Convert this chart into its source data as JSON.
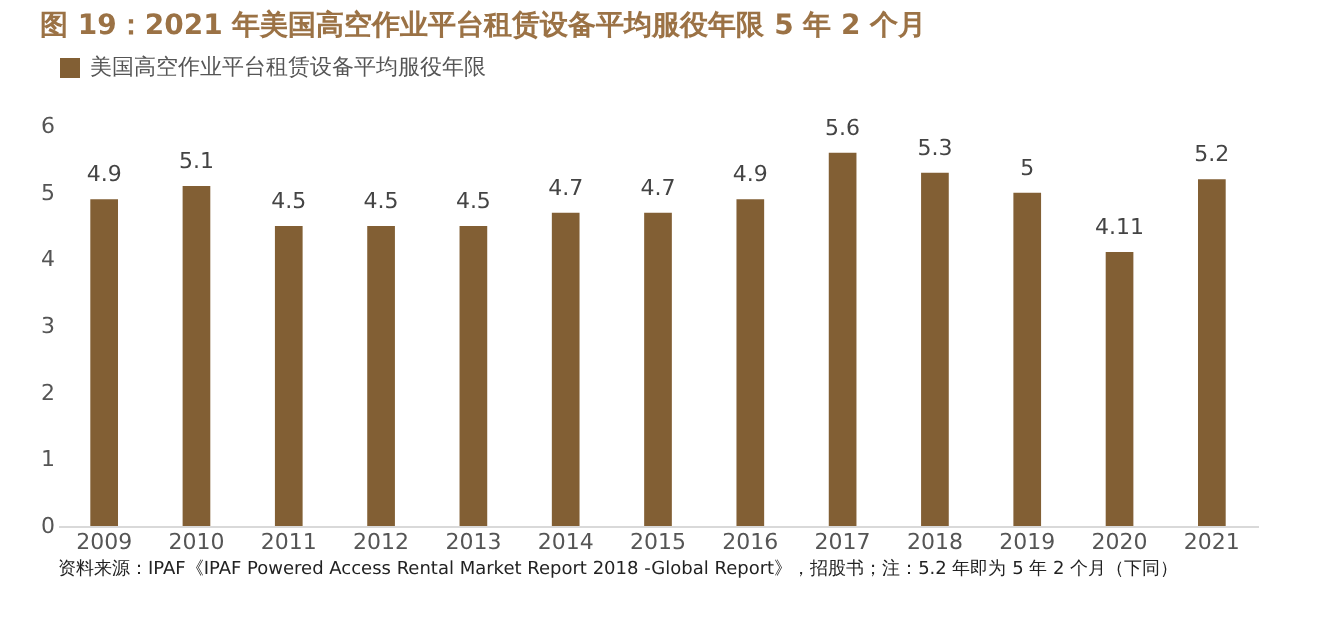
{
  "chart_data": {
    "type": "bar",
    "title": "图 19：2021 年美国高空作业平台租赁设备平均服役年限 5 年 2 个月",
    "categories": [
      "2009",
      "2010",
      "2011",
      "2012",
      "2013",
      "2014",
      "2015",
      "2016",
      "2017",
      "2018",
      "2019",
      "2020",
      "2021"
    ],
    "series": [
      {
        "name": "美国高空作业平台租赁设备平均服役年限",
        "color": "#825f34",
        "values": [
          4.9,
          5.1,
          4.5,
          4.5,
          4.5,
          4.7,
          4.7,
          4.9,
          5.6,
          5.3,
          5,
          4.11,
          5.2
        ]
      }
    ],
    "ylim": [
      0,
      6
    ],
    "yticks": [
      0,
      1,
      2,
      3,
      4,
      5,
      6
    ],
    "grid": false,
    "legend": "top",
    "data_labels": true,
    "annotations": [
      "资料来源：IPAF《IPAF Powered Access Rental Market Report 2018 -Global Report》，招股书；注：5.2 年即为 5 年 2 个月（下同）"
    ]
  }
}
